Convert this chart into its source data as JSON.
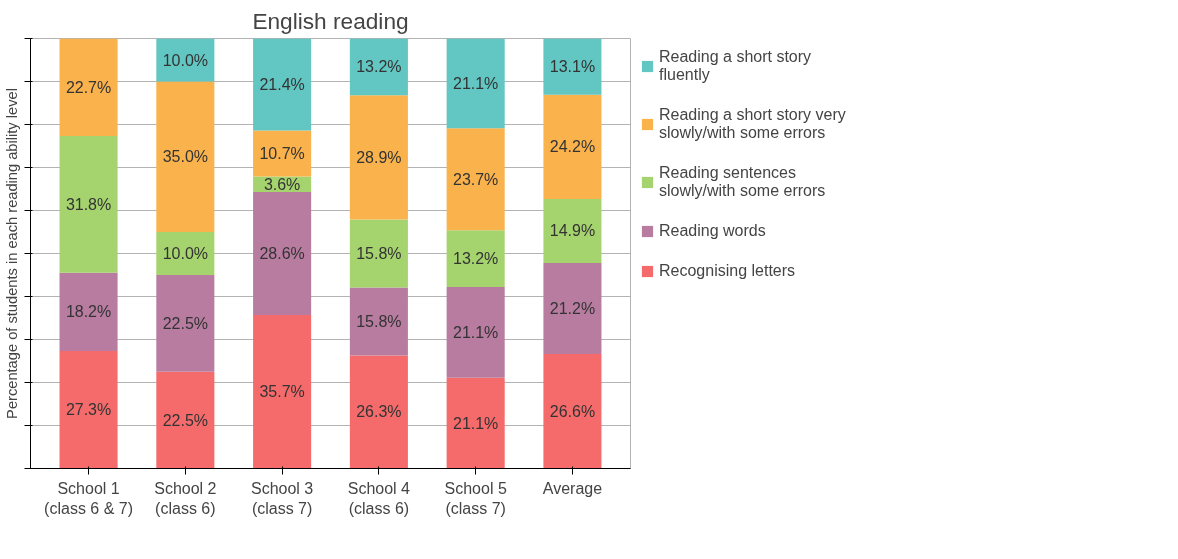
{
  "chart_data": {
    "type": "bar",
    "stacked": true,
    "title": "English reading",
    "ylabel": "Percentage of students in each reading ability level",
    "categories": [
      "School 1\n(class 6 & 7)",
      "School 2\n(class 6)",
      "School 3\n(class 7)",
      "School 4\n(class 6)",
      "School 5\n(class 7)",
      "Average"
    ],
    "series": [
      {
        "name": "Recognising letters",
        "color": "#f56b6b",
        "values": [
          27.3,
          22.5,
          35.7,
          26.3,
          21.1,
          26.6
        ],
        "value_labels": [
          "27.3%",
          "22.5%",
          "35.7%",
          "26.3%",
          "21.1%",
          "26.6%"
        ]
      },
      {
        "name": "Reading words",
        "color": "#b87ca0",
        "values": [
          18.2,
          22.5,
          28.6,
          15.8,
          21.1,
          21.2
        ],
        "value_labels": [
          "18.2%",
          "22.5%",
          "28.6%",
          "15.8%",
          "21.1%",
          "21.2%"
        ]
      },
      {
        "name": "Reading sentences slowly/with some errors",
        "color": "#a5d36e",
        "values": [
          31.8,
          10.0,
          3.6,
          15.8,
          13.2,
          14.9
        ],
        "value_labels": [
          "31.8%",
          "10.0%",
          "3.6%",
          "15.8%",
          "13.2%",
          "14.9%"
        ]
      },
      {
        "name": "Reading a short story very slowly/with some errors",
        "color": "#f9b24c",
        "values": [
          22.7,
          35.0,
          10.7,
          28.9,
          23.7,
          24.2
        ],
        "value_labels": [
          "22.7%",
          "35.0%",
          "10.7%",
          "28.9%",
          "23.7%",
          "24.2%"
        ]
      },
      {
        "name": "Reading a short story fluently",
        "color": "#62c6c2",
        "values": [
          0,
          10.0,
          21.4,
          13.2,
          21.1,
          13.1
        ],
        "value_labels": [
          null,
          "10.0%",
          "21.4%",
          "13.2%",
          "21.1%",
          "13.1%"
        ]
      }
    ],
    "ylim": [
      0,
      100
    ],
    "yticks": [
      {
        "value": 0,
        "label": null
      },
      {
        "value": 10,
        "label": null
      },
      {
        "value": 20,
        "label": null
      },
      {
        "value": 30,
        "label": null
      },
      {
        "value": 40,
        "label": null
      },
      {
        "value": 50,
        "label": null
      },
      {
        "value": 60,
        "label": null
      },
      {
        "value": 70,
        "label": null
      },
      {
        "value": 80,
        "label": null
      },
      {
        "value": 90,
        "label": null
      },
      {
        "value": 100,
        "label": null
      }
    ],
    "grid": "y",
    "legend": "right",
    "tick_labels": "x"
  }
}
